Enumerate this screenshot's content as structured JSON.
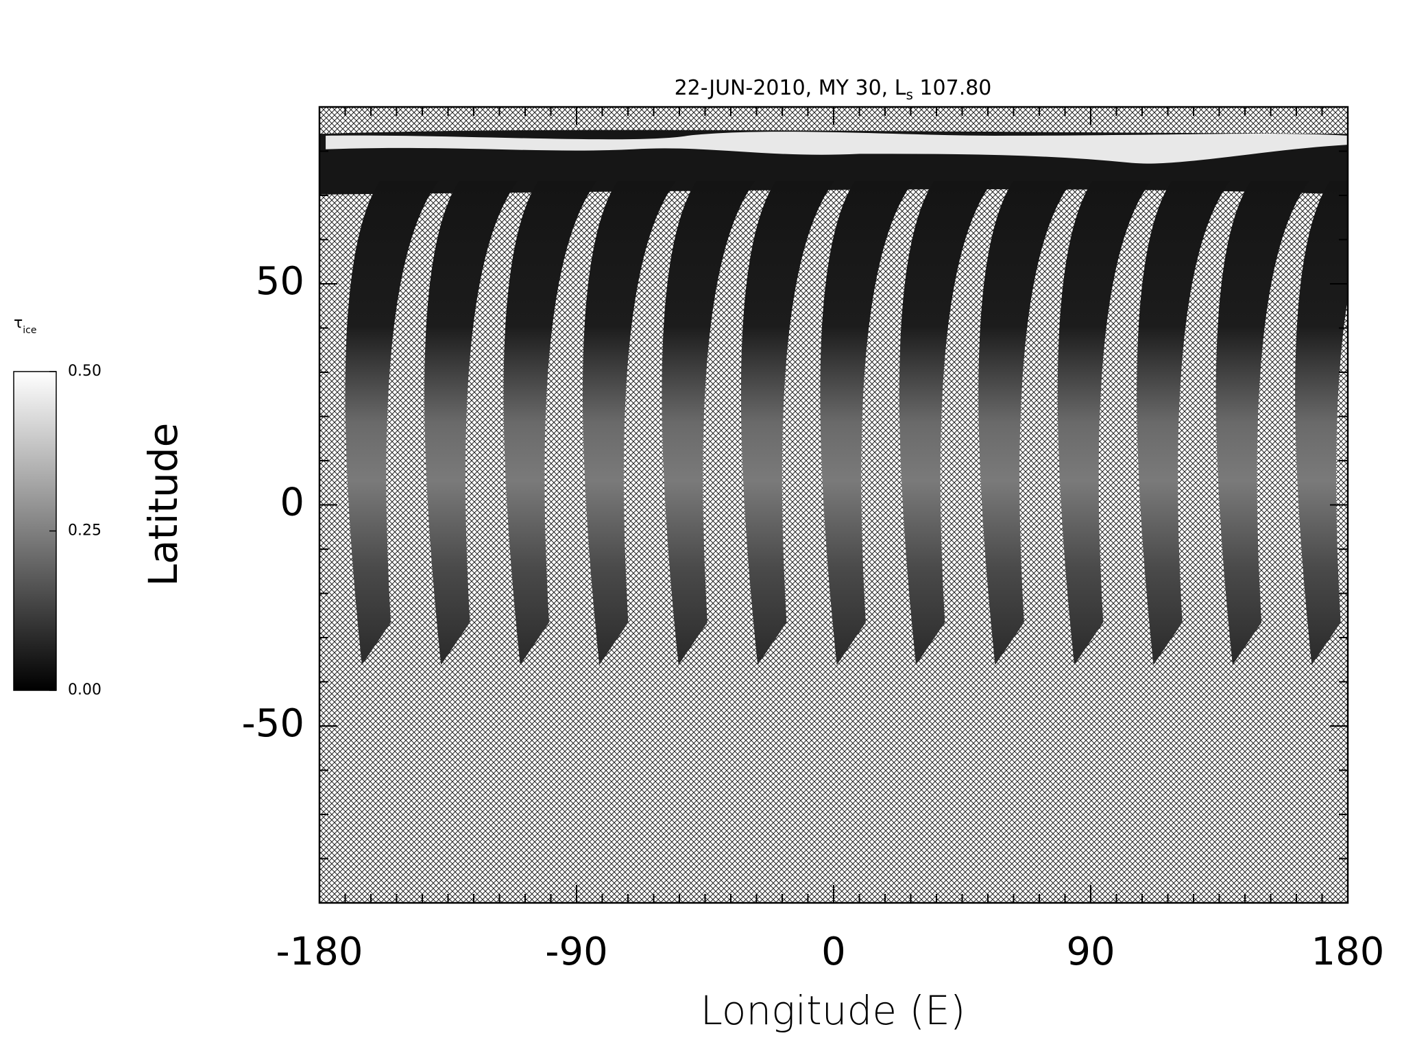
{
  "chart_data": {
    "type": "map",
    "title": {
      "text": "22-JUN-2010, MY 30,  L",
      "subscript": "s",
      "suffix": " 107.80"
    },
    "xlabel": "Longitude (E)",
    "ylabel": "Latitude",
    "xlim": [
      -180,
      180
    ],
    "xticks": [
      -180,
      -90,
      0,
      90,
      180
    ],
    "xminorticks": [
      -171,
      -162,
      -153,
      -144,
      -135,
      -126,
      -117,
      -108,
      -99,
      -81,
      -72,
      -63,
      -54,
      -45,
      -36,
      -27,
      -18,
      -9,
      9,
      18,
      27,
      36,
      45,
      54,
      63,
      72,
      81,
      99,
      108,
      117,
      126,
      135,
      144,
      153,
      162,
      171
    ],
    "ylim": [
      -90,
      90
    ],
    "yticks": [
      -50,
      0,
      50
    ],
    "yminorticks": [
      -80,
      -70,
      -60,
      -40,
      -30,
      -20,
      -10,
      10,
      20,
      30,
      40,
      60,
      70,
      80
    ],
    "colorbar": {
      "label": "τ",
      "label_subscript": "ice",
      "lim": [
        0,
        0.5
      ],
      "ticks": [
        {
          "value": 0,
          "label": "0.00"
        },
        {
          "value": 0.25,
          "label": "0.25"
        },
        {
          "value": 0.5,
          "label": "0.50"
        }
      ],
      "colors": [
        "#000000",
        "#ffffff"
      ]
    }
  }
}
